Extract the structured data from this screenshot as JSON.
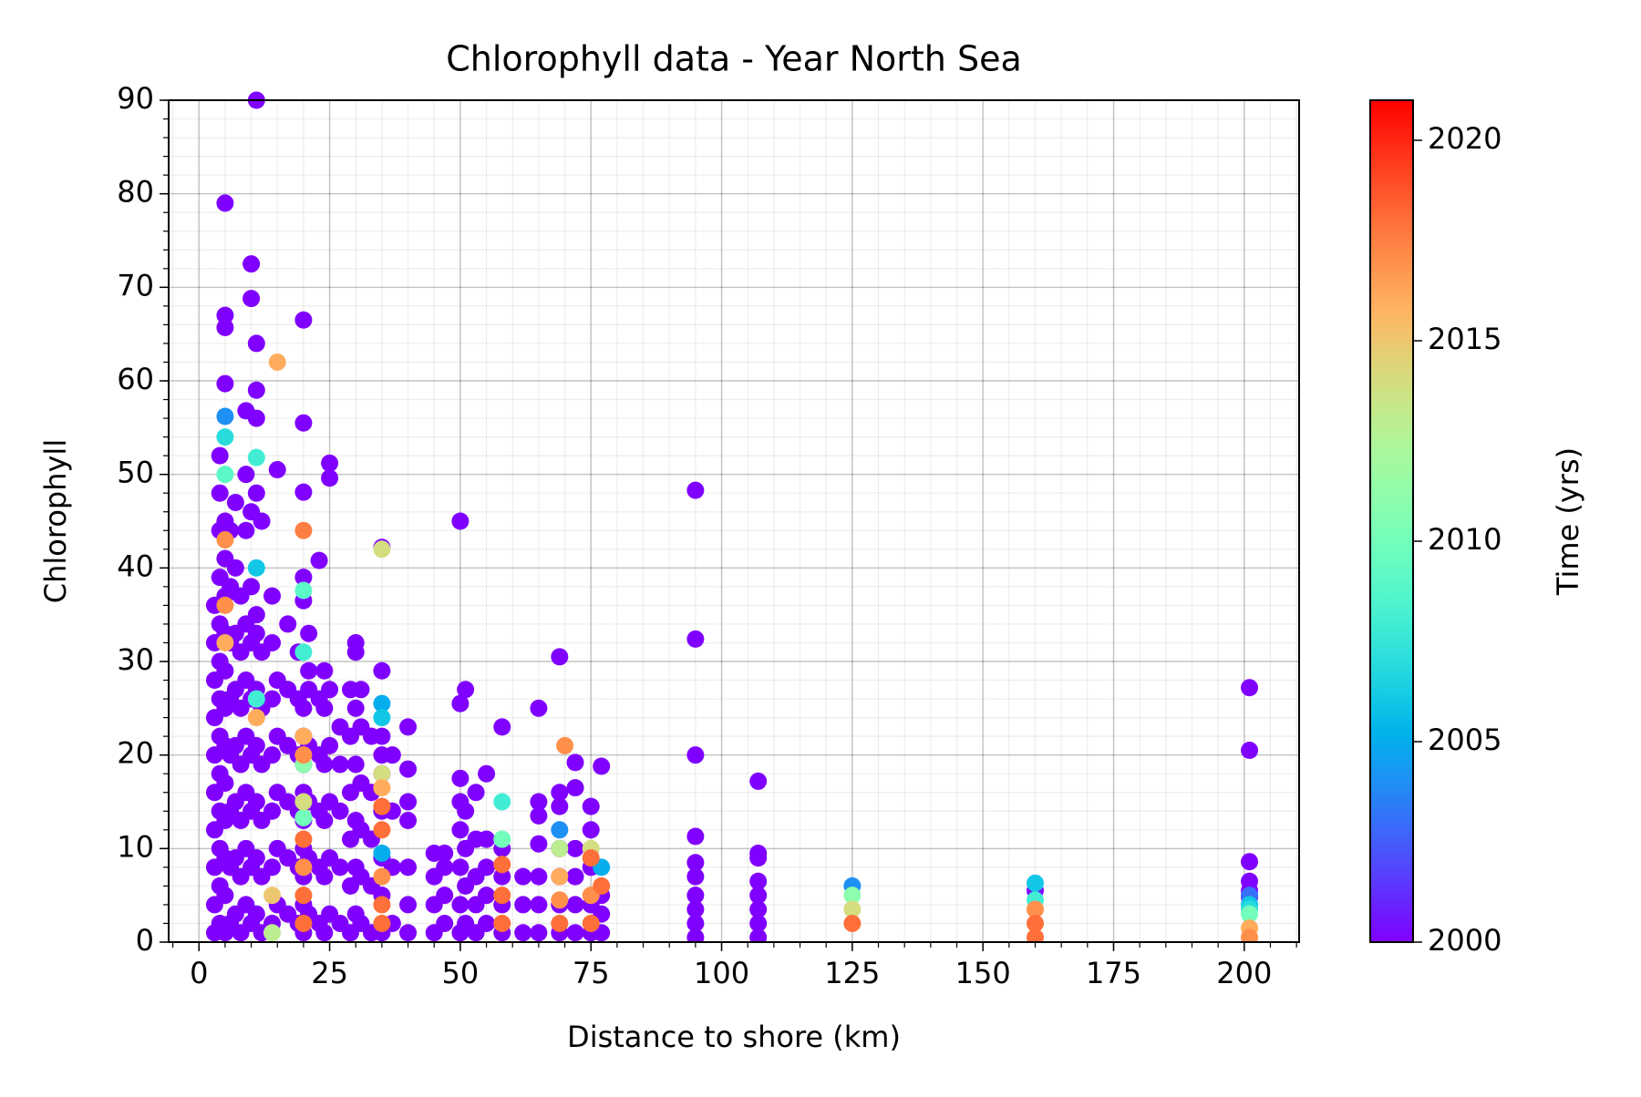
{
  "chart_data": {
    "type": "scatter",
    "title": "Chlorophyll data - Year North Sea",
    "x_label": "Distance to shore (km)",
    "y_label": "Chlorophyll",
    "xlim": [
      -5.8,
      210.5
    ],
    "ylim": [
      0,
      90
    ],
    "xticks": [
      0,
      25,
      50,
      75,
      100,
      125,
      150,
      175,
      200
    ],
    "yticks": [
      0,
      10,
      20,
      30,
      40,
      50,
      60,
      70,
      80,
      90
    ],
    "grid": true,
    "minor_grid": true,
    "minor_per_major": 5,
    "colormap": "rainbow",
    "colorbar": {
      "label": "Time (yrs)",
      "clim": [
        2000,
        2021
      ],
      "ticks": [
        2000,
        2005,
        2010,
        2015,
        2020
      ]
    },
    "series": [
      {
        "c": 2000,
        "x": [
          3,
          3,
          3,
          3,
          3,
          3,
          3,
          3,
          3,
          3,
          4,
          4,
          4,
          4,
          4,
          4,
          4,
          4,
          4,
          4,
          4,
          4,
          4,
          5,
          5,
          5,
          5,
          5,
          5,
          5,
          5,
          5,
          5,
          5,
          5,
          5,
          5,
          5,
          5,
          6,
          6,
          6,
          6,
          6,
          6,
          6,
          6,
          7,
          7,
          7,
          7,
          7,
          7,
          7,
          7,
          8,
          8,
          8,
          8,
          8,
          8,
          8,
          9,
          9,
          9,
          9,
          9,
          9,
          9,
          9,
          9,
          10,
          10,
          10,
          10,
          10,
          10,
          10,
          10,
          10,
          10,
          11,
          11,
          11,
          11,
          11,
          11,
          11,
          11,
          11,
          11,
          11,
          11,
          12,
          12,
          12,
          12,
          12,
          12,
          12,
          14,
          14,
          14,
          14,
          14,
          14,
          14,
          15,
          15,
          15,
          15,
          15,
          15,
          17,
          17,
          17,
          17,
          17,
          17,
          19,
          19,
          19,
          19,
          19,
          19,
          20,
          20,
          20,
          20,
          20,
          20,
          20,
          20,
          20,
          20,
          20,
          20,
          20,
          20,
          21,
          21,
          21,
          21,
          21,
          21,
          21,
          23,
          23,
          23,
          23,
          23,
          23,
          24,
          24,
          24,
          24,
          24,
          24,
          25,
          25,
          25,
          25,
          25,
          25,
          25,
          27,
          27,
          27,
          27,
          27,
          29,
          29,
          29,
          29,
          29,
          29,
          30,
          30,
          30,
          30,
          30,
          30,
          30,
          31,
          31,
          31,
          31,
          31,
          31,
          33,
          33,
          33,
          33,
          33,
          35,
          35,
          35,
          35,
          35,
          35,
          35,
          35,
          35,
          37,
          37,
          37,
          37,
          40,
          40,
          40,
          40,
          40,
          40,
          40,
          45,
          45,
          45,
          45,
          47,
          47,
          47,
          47,
          50,
          50,
          50,
          50,
          50,
          50,
          50,
          50,
          51,
          51,
          51,
          51,
          51,
          53,
          53,
          53,
          53,
          53,
          55,
          55,
          55,
          55,
          55,
          58,
          58,
          58,
          58,
          58,
          62,
          62,
          62,
          65,
          65,
          65,
          65,
          65,
          65,
          65,
          69,
          69,
          69,
          69,
          69,
          69,
          69,
          72,
          72,
          72,
          72,
          72,
          72,
          75,
          75,
          75,
          75,
          75,
          77,
          77,
          77,
          77,
          95,
          95,
          95,
          95,
          95,
          95,
          95,
          95,
          95,
          95,
          107,
          107,
          107,
          107,
          107,
          107,
          107,
          107,
          160,
          201,
          201,
          201,
          201,
          201,
          201
        ],
        "values": [
          1,
          4,
          8,
          12,
          16,
          20,
          24,
          28,
          32,
          36,
          2,
          6,
          10,
          14,
          18,
          22,
          26,
          30,
          34,
          39,
          44,
          48,
          52,
          1,
          5,
          9,
          13,
          17,
          21,
          25,
          29,
          33,
          37,
          41,
          45,
          79,
          67,
          65.7,
          59.7,
          2,
          8,
          14,
          20,
          26,
          32,
          38,
          44,
          3,
          9,
          15,
          21,
          27,
          33,
          40,
          47,
          1,
          7,
          13,
          19,
          25,
          31,
          37,
          4,
          10,
          16,
          22,
          28,
          34,
          44,
          50,
          56.8,
          2,
          8,
          14,
          20,
          26,
          32,
          38,
          46,
          72.5,
          68.8,
          3,
          9,
          15,
          21,
          27,
          33,
          48,
          90,
          64,
          59,
          56,
          35,
          1,
          7,
          13,
          19,
          25,
          31,
          45,
          2,
          8,
          14,
          20,
          26,
          32,
          37,
          4,
          10,
          16,
          22,
          28,
          50.5,
          3,
          9,
          15,
          21,
          27,
          34,
          2,
          8,
          14,
          20,
          26,
          31,
          1,
          4,
          7,
          10,
          13,
          16,
          19,
          22,
          25,
          66.5,
          55.5,
          48.1,
          39,
          36.5,
          3,
          9,
          15,
          21,
          27,
          33,
          29,
          2,
          8,
          14,
          20,
          26,
          40.8,
          1,
          7,
          13,
          19,
          25,
          29,
          3,
          9,
          15,
          21,
          27,
          51.2,
          49.6,
          2,
          8,
          14,
          19,
          23,
          1,
          6,
          11,
          16,
          22,
          27,
          3,
          8,
          13,
          19,
          25,
          31,
          32,
          2,
          7,
          12,
          17,
          23,
          27,
          1,
          6,
          11,
          16,
          22,
          1,
          5,
          9,
          14,
          18,
          22,
          29,
          42.2,
          20,
          2,
          8,
          14,
          20,
          1,
          4,
          8,
          13,
          15,
          18.5,
          23,
          1,
          4,
          7,
          9.5,
          2,
          5,
          8,
          9.5,
          1,
          4,
          8,
          12,
          15,
          17.5,
          45,
          25.5,
          2,
          6,
          10,
          14,
          27,
          1,
          4,
          7,
          11,
          16,
          2,
          5,
          8,
          11,
          18,
          1,
          4,
          7,
          10,
          23,
          1,
          4,
          7,
          1,
          4,
          7,
          10.5,
          13.5,
          15,
          25,
          1,
          4,
          7,
          10,
          14.5,
          30.5,
          16,
          1,
          4,
          7,
          10,
          16.5,
          19.2,
          1,
          4,
          8,
          12,
          14.5,
          1,
          3,
          5,
          18.8,
          0.5,
          2,
          3.5,
          5,
          7,
          8.5,
          11.3,
          20,
          32.4,
          48.3,
          0.5,
          2,
          3.5,
          5,
          6.5,
          9,
          9.5,
          17.2,
          5.5,
          5.5,
          6.5,
          8.6,
          20.5,
          27.2,
          4.8
        ]
      },
      {
        "c": 2003,
        "x": [
          201
        ],
        "values": [
          5
        ]
      },
      {
        "c": 2004,
        "x": [
          5,
          69,
          125
        ],
        "values": [
          56.2,
          12,
          6
        ]
      },
      {
        "c": 2005,
        "x": [
          35,
          35,
          77
        ],
        "values": [
          9.5,
          25.5,
          8
        ]
      },
      {
        "c": 2006,
        "x": [
          11,
          35,
          160,
          201
        ],
        "values": [
          40,
          24,
          6.3,
          4
        ]
      },
      {
        "c": 2007,
        "x": [
          5,
          201
        ],
        "values": [
          54,
          3.5
        ]
      },
      {
        "c": 2008,
        "x": [
          11,
          20,
          58,
          160,
          11
        ],
        "values": [
          26,
          31,
          15,
          4.5,
          51.8
        ]
      },
      {
        "c": 2009,
        "x": [
          5,
          20
        ],
        "values": [
          50,
          37.6
        ]
      },
      {
        "c": 2010,
        "x": [
          20,
          58,
          201
        ],
        "values": [
          13.3,
          11,
          3
        ]
      },
      {
        "c": 2011,
        "x": [
          20,
          125
        ],
        "values": [
          19,
          5
        ]
      },
      {
        "c": 2013,
        "x": [
          14,
          69
        ],
        "values": [
          1,
          10
        ]
      },
      {
        "c": 2014,
        "x": [
          20,
          35,
          35,
          75,
          125
        ],
        "values": [
          15,
          18,
          42,
          10,
          3.5
        ]
      },
      {
        "c": 2015,
        "x": [
          14
        ],
        "values": [
          5
        ]
      },
      {
        "c": 2016,
        "x": [
          5,
          11,
          20,
          35,
          69,
          15,
          201
        ],
        "values": [
          32,
          24,
          22,
          16.5,
          7,
          62,
          1.5
        ]
      },
      {
        "c": 2017,
        "x": [
          5,
          5,
          20,
          20,
          35,
          69,
          75,
          160,
          201,
          70
        ],
        "values": [
          43,
          36,
          8,
          20,
          7,
          4.5,
          5,
          3.5,
          0.5,
          21
        ]
      },
      {
        "c": 2017.5,
        "x": [
          20
        ],
        "values": [
          44
        ]
      },
      {
        "c": 2018,
        "x": [
          20,
          20,
          20,
          35,
          35,
          35,
          35,
          58,
          58,
          58,
          69,
          75,
          75,
          77,
          125,
          160,
          160
        ],
        "values": [
          2,
          5,
          11,
          2,
          4,
          12,
          14.5,
          2,
          5,
          8.3,
          2,
          2,
          9,
          6,
          2,
          0.5,
          2
        ]
      }
    ]
  }
}
